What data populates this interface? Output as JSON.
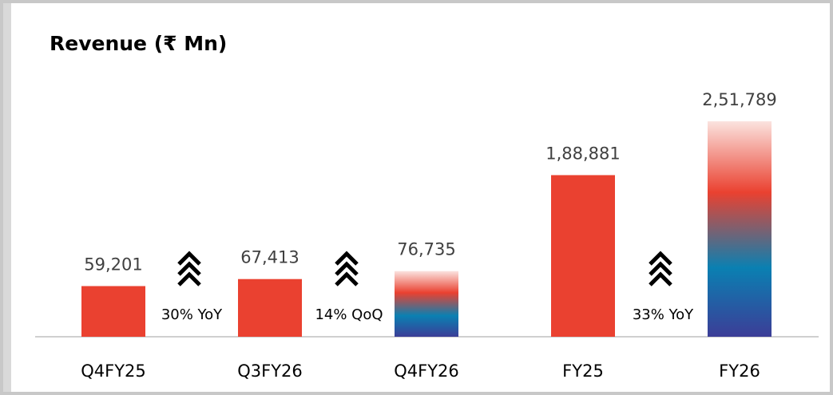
{
  "chart_data": {
    "type": "bar",
    "title": "Revenue (₹ Mn)",
    "categories": [
      "Q4FY25",
      "Q3FY26",
      "Q4FY26",
      "FY25",
      "FY26"
    ],
    "values": [
      59201,
      67413,
      76735,
      188881,
      251789
    ],
    "value_labels": [
      "59,201",
      "67,413",
      "76,735",
      "1,88,881",
      "2,51,789"
    ],
    "color": "#ea4130",
    "bar_styles": [
      "solid",
      "solid",
      "gradient",
      "solid",
      "gradient"
    ],
    "gradient_colors": [
      "#fbe3df",
      "#ea4130",
      "#0a80b2",
      "#3c3d97"
    ],
    "annotations": [
      "30% YoY",
      "14% QoQ",
      "33% YoY"
    ]
  }
}
